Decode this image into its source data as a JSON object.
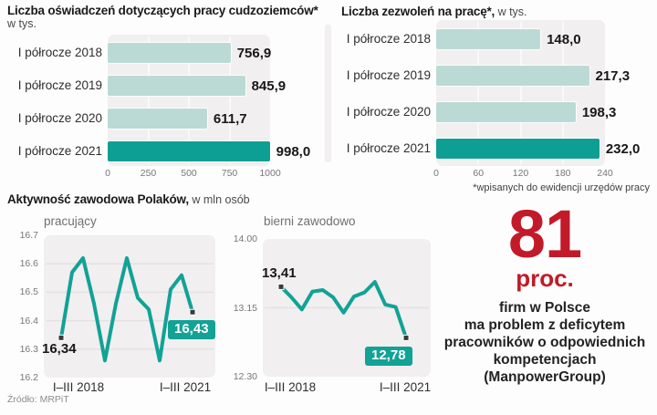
{
  "colors": {
    "accent_teal": "#12A296",
    "bar_teal_dark": "#0D9F93",
    "bar_teal_light": "#BCDAD5",
    "red": "#C21A28",
    "panel_gray": "#F1EFF0",
    "text_dark": "#1B191A"
  },
  "section": {
    "title_bold": "Aktywność zawodowa Polaków,",
    "unit_suffix": " w mln osób"
  },
  "stat": {
    "number": "81",
    "unit": "proc.",
    "lines": [
      "firm w Polsce",
      "ma problem z deficytem",
      "pracowników o odpowiednich",
      "kompetencjach",
      "(ManpowerGroup)"
    ]
  },
  "source": "Źródło: MRPiT",
  "chart_data": [
    {
      "type": "bar",
      "title": "Liczba oświadczeń dotyczących pracy cudzoziemców*",
      "unit": "w tys.",
      "categories": [
        "I półrocze 2018",
        "I półrocze 2019",
        "I półrocze 2020",
        "I półrocze 2021"
      ],
      "values": [
        756.9,
        845.9,
        611.7,
        998.0
      ],
      "value_labels": [
        "756,9",
        "845,9",
        "611,7",
        "998,0"
      ],
      "xlim": [
        0,
        1000
      ],
      "xticks": [
        0,
        250,
        500,
        750,
        1000
      ],
      "highlight_index": 3,
      "legend_position": "none",
      "grid": "vertical"
    },
    {
      "type": "bar",
      "title": "Liczba zezwoleń na pracę*,",
      "unit_suffix": " w tys.",
      "categories": [
        "I półrocze 2018",
        "I półrocze 2019",
        "I półrocze 2020",
        "I półrocze 2021"
      ],
      "values": [
        148.0,
        217.3,
        198.3,
        232.0
      ],
      "value_labels": [
        "148,0",
        "217,3",
        "198,3",
        "232,0"
      ],
      "xlim": [
        0,
        240
      ],
      "xticks": [
        0,
        60,
        120,
        180,
        240
      ],
      "highlight_index": 3,
      "footnote": "*wpisanych do ewidencji urzędów pracy",
      "legend_position": "none",
      "grid": "vertical"
    },
    {
      "type": "line",
      "title": "pracujący",
      "x_range_labels": [
        "I–III 2018",
        "I–III 2021"
      ],
      "values": [
        16.34,
        16.57,
        16.62,
        16.46,
        16.26,
        16.46,
        16.62,
        16.48,
        16.44,
        16.26,
        16.51,
        16.56,
        16.43
      ],
      "ylim": [
        16.2,
        16.7
      ],
      "yticks": [
        "16.7",
        "16.6",
        "16.5",
        "16.4",
        "16.3",
        "16.2"
      ],
      "first_point_label": "16,34",
      "last_point_label": "16,43",
      "grid": "horizontal"
    },
    {
      "type": "line",
      "title": "bierni zawodowo",
      "x_range_labels": [
        "I–III 2018",
        "I–III 2021"
      ],
      "values": [
        13.41,
        13.28,
        13.13,
        13.35,
        13.37,
        13.28,
        13.09,
        13.29,
        13.34,
        13.47,
        13.19,
        13.16,
        12.78
      ],
      "ylim": [
        12.3,
        14.0
      ],
      "yticks": [
        "14.00",
        "13.15",
        "12.30"
      ],
      "first_point_label": "13,41",
      "last_point_label": "12,78",
      "grid": "horizontal"
    }
  ]
}
